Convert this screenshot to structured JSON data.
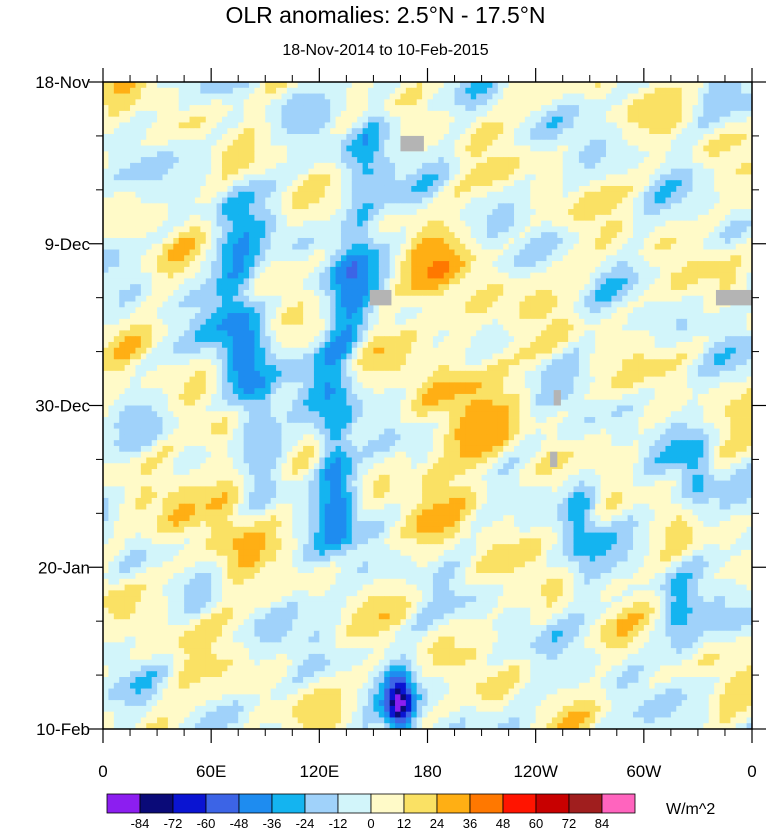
{
  "chart_data": {
    "type": "heatmap",
    "title": "OLR anomalies: 2.5°N - 17.5°N",
    "subtitle": "18-Nov-2014 to 10-Feb-2015",
    "x_ticks": [
      "0",
      "60E",
      "120E",
      "180",
      "120W",
      "60W",
      "0"
    ],
    "x_tick_values": [
      0,
      60,
      120,
      180,
      240,
      300,
      360
    ],
    "y_ticks": [
      "18-Nov",
      "9-Dec",
      "30-Dec",
      "20-Jan",
      "10-Feb"
    ],
    "y_tick_days": [
      0,
      21,
      42,
      63,
      84
    ],
    "xlim": [
      0,
      360
    ],
    "ylim_days": [
      0,
      84
    ],
    "units": "W/m^2",
    "colorbar": {
      "levels": [
        -84,
        -72,
        -60,
        -48,
        -36,
        -24,
        -12,
        0,
        12,
        24,
        36,
        48,
        60,
        72,
        84
      ],
      "level_labels": [
        "-84",
        "-72",
        "-60",
        "-48",
        "-36",
        "-24",
        "-12",
        "0",
        "12",
        "24",
        "36",
        "48",
        "60",
        "72",
        "84"
      ],
      "colors": [
        "#8c1ef0",
        "#0a0a78",
        "#0a14d2",
        "#3c64e6",
        "#1e8cf0",
        "#14b4f0",
        "#a0d2fa",
        "#d2f5fa",
        "#fffac8",
        "#fae164",
        "#ffaf14",
        "#ff7800",
        "#ff1400",
        "#c80000",
        "#a01e1e",
        "#ff64be"
      ]
    },
    "features": [
      {
        "name": "Negative anomaly streak (western Pacific)",
        "lon": [
          150,
          120
        ],
        "days": [
          5,
          55
        ],
        "value": -48
      },
      {
        "name": "Negative anomaly streak (Indian Ocean)",
        "lon": [
          60,
          95
        ],
        "days": [
          15,
          45
        ],
        "value": -60
      },
      {
        "name": "Positive anomaly band (Indian Ocean)",
        "lon": [
          55,
          85
        ],
        "days": [
          45,
          65
        ],
        "value": 24
      },
      {
        "name": "Strong negative anomaly (central Pacific)",
        "lon": [
          165,
          175
        ],
        "days": [
          77,
          83
        ],
        "value": -84
      },
      {
        "name": "Positive anomaly band (dateline)",
        "lon": [
          170,
          230
        ],
        "days": [
          35,
          75
        ],
        "value": 24
      },
      {
        "name": "Negative anomaly (eastern Pacific)",
        "lon": [
          255,
          275
        ],
        "days": [
          50,
          65
        ],
        "value": -36
      }
    ],
    "missing_data": [
      {
        "lon": [
          165,
          178
        ],
        "days": [
          7,
          9
        ]
      },
      {
        "lon": [
          148,
          160
        ],
        "days": [
          27,
          29
        ]
      },
      {
        "lon": [
          340,
          360
        ],
        "days": [
          27,
          29
        ]
      },
      {
        "lon": [
          250,
          254
        ],
        "days": [
          40,
          42
        ]
      },
      {
        "lon": [
          248,
          252
        ],
        "days": [
          48,
          50
        ]
      }
    ]
  }
}
